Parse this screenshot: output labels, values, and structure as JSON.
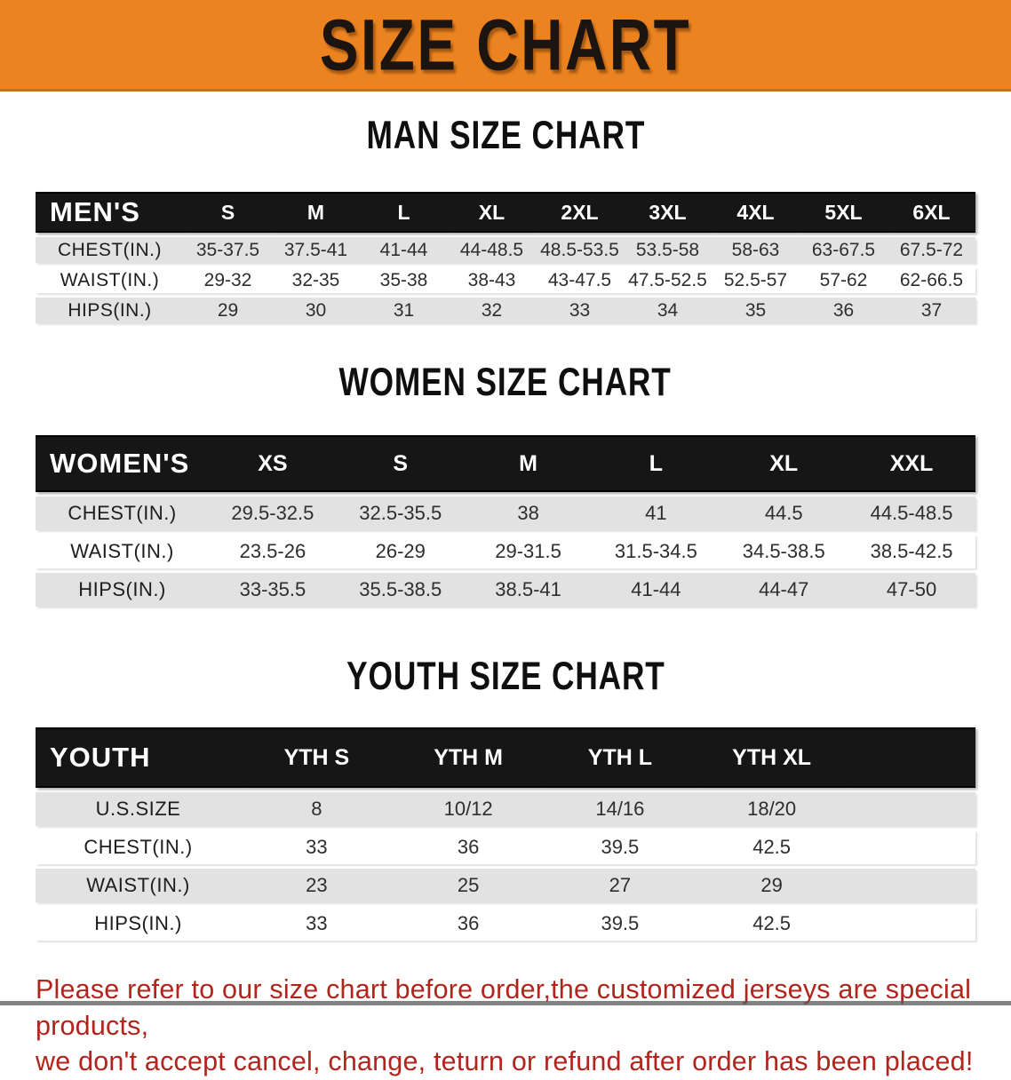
{
  "banner": {
    "title": "SIZE CHART",
    "bg_color": "#EB8320"
  },
  "sections": {
    "men_title": "MAN SIZE CHART",
    "women_title": "WOMEN SIZE CHART",
    "youth_title": "YOUTH SIZE CHART"
  },
  "men_table": {
    "label": "MEN'S",
    "columns": [
      "S",
      "M",
      "L",
      "XL",
      "2XL",
      "3XL",
      "4XL",
      "5XL",
      "6XL"
    ],
    "rows": [
      {
        "label": "CHEST(IN.)",
        "values": [
          "35-37.5",
          "37.5-41",
          "41-44",
          "44-48.5",
          "48.5-53.5",
          "53.5-58",
          "58-63",
          "63-67.5",
          "67.5-72"
        ]
      },
      {
        "label": "WAIST(IN.)",
        "values": [
          "29-32",
          "32-35",
          "35-38",
          "38-43",
          "43-47.5",
          "47.5-52.5",
          "52.5-57",
          "57-62",
          "62-66.5"
        ]
      },
      {
        "label": "HIPS(IN.)",
        "values": [
          "29",
          "30",
          "31",
          "32",
          "33",
          "34",
          "35",
          "36",
          "37"
        ]
      }
    ]
  },
  "women_table": {
    "label": "WOMEN'S",
    "columns": [
      "XS",
      "S",
      "M",
      "L",
      "XL",
      "XXL"
    ],
    "rows": [
      {
        "label": "CHEST(IN.)",
        "values": [
          "29.5-32.5",
          "32.5-35.5",
          "38",
          "41",
          "44.5",
          "44.5-48.5"
        ]
      },
      {
        "label": "WAIST(IN.)",
        "values": [
          "23.5-26",
          "26-29",
          "29-31.5",
          "31.5-34.5",
          "34.5-38.5",
          "38.5-42.5"
        ]
      },
      {
        "label": "HIPS(IN.)",
        "values": [
          "33-35.5",
          "35.5-38.5",
          "38.5-41",
          "41-44",
          "44-47",
          "47-50"
        ]
      }
    ]
  },
  "youth_table": {
    "label": "YOUTH",
    "columns": [
      "YTH S",
      "YTH M",
      "YTH L",
      "YTH XL"
    ],
    "rows": [
      {
        "label": "U.S.SIZE",
        "values": [
          "8",
          "10/12",
          "14/16",
          "18/20"
        ]
      },
      {
        "label": "CHEST(IN.)",
        "values": [
          "33",
          "36",
          "39.5",
          "42.5"
        ]
      },
      {
        "label": "WAIST(IN.)",
        "values": [
          "23",
          "25",
          "27",
          "29"
        ]
      },
      {
        "label": "HIPS(IN.)",
        "values": [
          "33",
          "36",
          "39.5",
          "42.5"
        ]
      }
    ]
  },
  "footer": {
    "line1": "Please refer to our size chart before order,the customized jerseys are special products,",
    "line2": "we don't accept cancel, change, teturn or refund after order has been placed!"
  }
}
